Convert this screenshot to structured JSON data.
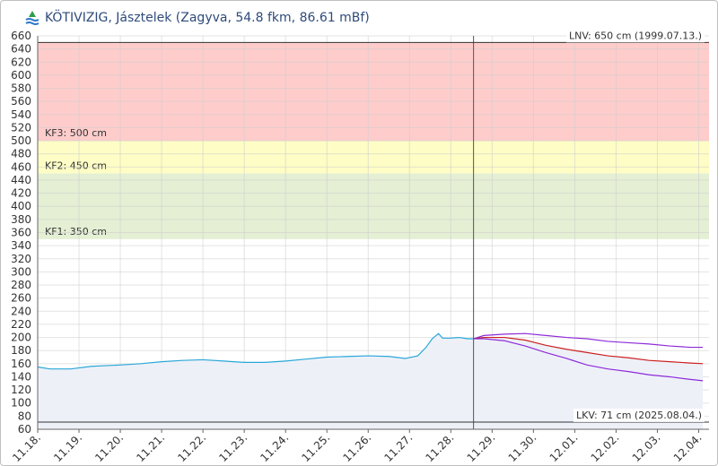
{
  "header": {
    "title": "KÖTIVIZIG, Jásztelek (Zagyva, 54.8 fkm, 86.61 mBf)",
    "logo_icon": "water-gauge-logo-icon"
  },
  "chart_data": {
    "type": "line",
    "ylim": [
      60,
      660
    ],
    "ytick_step": 20,
    "x_categories": [
      "11.18.",
      "11.19.",
      "11.20.",
      "11.21.",
      "11.22.",
      "11.23.",
      "11.24.",
      "11.25.",
      "11.26.",
      "11.27.",
      "11.28.",
      "11.29.",
      "11.30.",
      "12.01.",
      "12.02.",
      "12.03.",
      "12.04."
    ],
    "x_range": [
      0,
      16.25
    ],
    "now_x": 10.55,
    "grid": true,
    "bands": [
      {
        "name": "KF3",
        "label": "KF3: 500 cm",
        "from": 500,
        "to": 650,
        "color": "#ffcccc"
      },
      {
        "name": "KF2",
        "label": "KF2: 450 cm",
        "from": 450,
        "to": 500,
        "color": "#fdfdc5"
      },
      {
        "name": "KF1",
        "label": "KF1: 350 cm",
        "from": 350,
        "to": 450,
        "color": "#e4efd4"
      }
    ],
    "reference_lines": [
      {
        "label": "LNV: 650 cm (1999.07.13.)",
        "value": 650
      },
      {
        "label": "LKV: 71 cm (2025.08.04.)",
        "value": 71
      }
    ],
    "colors": {
      "measured": "#29a8d8",
      "forecast_mid": "#cc1f1f",
      "forecast_band": "#8d2bd9",
      "area_fill": "#eef0f8",
      "now_line": "#555555"
    },
    "series": [
      {
        "id": "measured",
        "x": [
          0,
          0.3,
          0.8,
          1.3,
          2.0,
          2.5,
          3.0,
          3.5,
          4.0,
          4.5,
          5.0,
          5.5,
          6.0,
          6.5,
          7.0,
          7.5,
          8.0,
          8.5,
          8.9,
          9.2,
          9.4,
          9.55,
          9.7,
          9.8,
          10.0,
          10.2,
          10.4,
          10.55
        ],
        "y": [
          155,
          152,
          152,
          156,
          158,
          160,
          163,
          165,
          166,
          164,
          162,
          162,
          164,
          167,
          170,
          171,
          172,
          171,
          168,
          172,
          185,
          198,
          206,
          199,
          199,
          200,
          198,
          198
        ]
      },
      {
        "id": "forecast_upper",
        "x": [
          10.55,
          10.8,
          11.3,
          11.8,
          12.3,
          12.8,
          13.3,
          13.8,
          14.3,
          14.8,
          15.3,
          15.8,
          16.1
        ],
        "y": [
          198,
          203,
          205,
          206,
          203,
          200,
          198,
          194,
          192,
          190,
          187,
          185,
          185
        ]
      },
      {
        "id": "forecast_mid",
        "x": [
          10.55,
          10.8,
          11.3,
          11.8,
          12.3,
          12.8,
          13.3,
          13.8,
          14.3,
          14.8,
          15.3,
          15.8,
          16.1
        ],
        "y": [
          198,
          200,
          200,
          196,
          188,
          182,
          177,
          172,
          169,
          165,
          163,
          161,
          160
        ]
      },
      {
        "id": "forecast_lower",
        "x": [
          10.55,
          10.8,
          11.3,
          11.8,
          12.3,
          12.8,
          13.3,
          13.8,
          14.3,
          14.8,
          15.3,
          15.8,
          16.1
        ],
        "y": [
          198,
          198,
          195,
          187,
          177,
          168,
          158,
          152,
          148,
          143,
          140,
          136,
          134
        ]
      }
    ]
  }
}
